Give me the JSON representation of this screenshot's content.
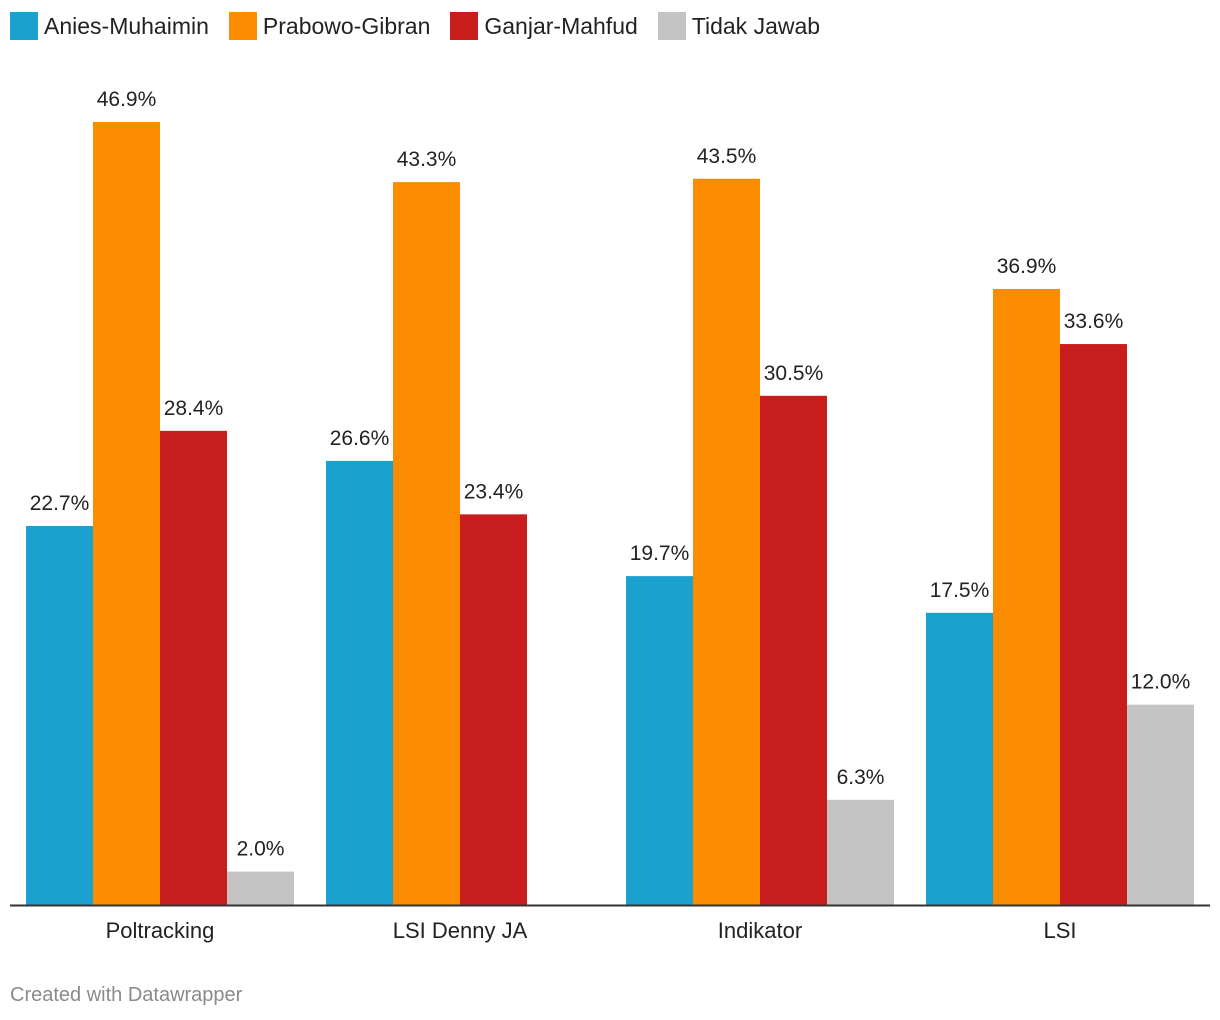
{
  "chart_data": {
    "type": "bar",
    "categories": [
      "Poltracking",
      "LSI Denny JA",
      "Indikator",
      "LSI"
    ],
    "series": [
      {
        "name": "Anies-Muhaimin",
        "color": "#1ba1cd",
        "values": [
          22.7,
          26.6,
          19.7,
          17.5
        ],
        "labels": [
          "22.7%",
          "26.6%",
          "19.7%",
          "17.5%"
        ]
      },
      {
        "name": "Prabowo-Gibran",
        "color": "#fb8c00",
        "values": [
          46.9,
          43.3,
          43.5,
          36.9
        ],
        "labels": [
          "46.9%",
          "43.3%",
          "43.5%",
          "36.9%"
        ]
      },
      {
        "name": "Ganjar-Mahfud",
        "color": "#c71e1d",
        "values": [
          28.4,
          23.4,
          30.5,
          33.6
        ],
        "labels": [
          "28.4%",
          "23.4%",
          "30.5%",
          "33.6%"
        ]
      },
      {
        "name": "Tidak Jawab",
        "color": "#c4c4c4",
        "values": [
          2.0,
          null,
          6.3,
          12.0
        ],
        "labels": [
          "2.0%",
          null,
          "6.3%",
          "12.0%"
        ]
      }
    ],
    "ylim": [
      0,
      46.9
    ],
    "legend_position": "top-left",
    "grid": false
  },
  "credit": "Created with Datawrapper"
}
